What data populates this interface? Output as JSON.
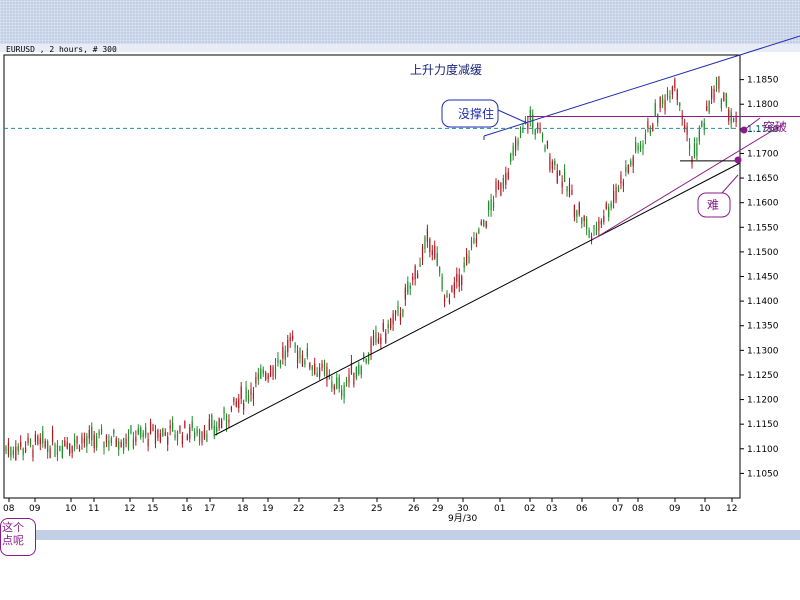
{
  "header": {
    "symbol_line": "EURUSD , 2 hours, # 300"
  },
  "annotations": {
    "title": "上升力度减缓",
    "callout_resistance": "没撑住",
    "label_breakout": "突破",
    "callout_hard": "难",
    "corner_note_line1": "这个",
    "corner_note_line2": "点呢"
  },
  "colors": {
    "bull_candle": "#1f8a2a",
    "bear_candle": "#b0171f",
    "annotation": "#8a1c8a",
    "upper_channel": "#1e2bb0",
    "support": "#000000",
    "dashed_level": "#2a9090"
  },
  "chart_data": {
    "type": "candlestick",
    "symbol": "EURUSD",
    "timeframe": "2 hours",
    "bars": 300,
    "ylim": [
      1.1,
      1.19
    ],
    "yticks": [
      1.105,
      1.11,
      1.115,
      1.12,
      1.125,
      1.13,
      1.135,
      1.14,
      1.145,
      1.15,
      1.155,
      1.16,
      1.165,
      1.17,
      1.175,
      1.18,
      1.185
    ],
    "price_marker": 1.1751,
    "xticks": [
      "08",
      "09",
      "10",
      "11",
      "12",
      "15",
      "16",
      "17",
      "18",
      "19",
      "22",
      "23",
      "25",
      "26",
      "29",
      "30",
      "01",
      "02",
      "03",
      "06",
      "07",
      "08",
      "09",
      "10",
      "12"
    ],
    "x_sublabel": "9月/30",
    "levels": [
      {
        "name": "resistance",
        "value": 1.1775
      },
      {
        "name": "dashed",
        "value": 1.1751
      },
      {
        "name": "low-shelf",
        "value": 1.1685
      }
    ],
    "key_prices": [
      {
        "label": "start",
        "value": 1.11
      },
      {
        "label": "low-1",
        "value": 1.114
      },
      {
        "label": "high-1",
        "value": 1.131
      },
      {
        "label": "low-2",
        "value": 1.122
      },
      {
        "label": "high-2",
        "value": 1.1375
      },
      {
        "label": "range-high",
        "value": 1.153
      },
      {
        "label": "range-low",
        "value": 1.139
      },
      {
        "label": "breakout-high",
        "value": 1.1775
      },
      {
        "label": "pullback-low",
        "value": 1.153
      },
      {
        "label": "peak",
        "value": 1.185
      },
      {
        "label": "dip",
        "value": 1.169
      },
      {
        "label": "peak-2",
        "value": 1.184
      },
      {
        "label": "last",
        "value": 1.1751
      }
    ]
  }
}
